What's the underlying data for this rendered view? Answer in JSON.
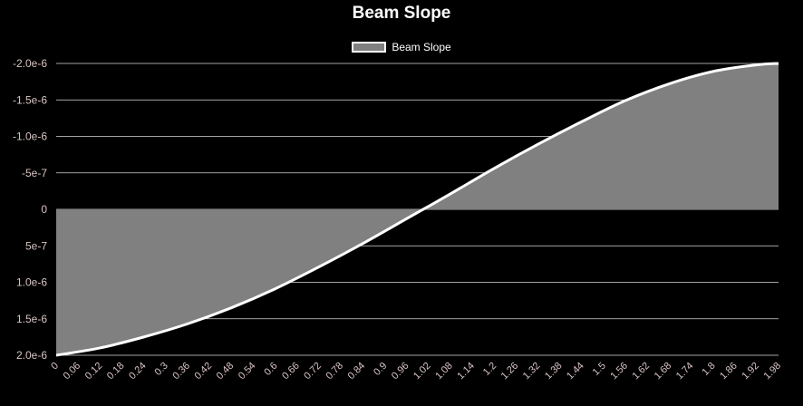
{
  "chart_data": {
    "type": "area",
    "title": "Beam Slope",
    "legend": [
      "Beam Slope"
    ],
    "legend_position": "top",
    "grid": true,
    "y_reversed": true,
    "ylim": [
      -2e-06,
      2e-06
    ],
    "y_ticks": [
      "-2.0e-6",
      "-1.5e-6",
      "-1.0e-6",
      "-5e-7",
      "0",
      "5e-7",
      "1.0e-6",
      "1.5e-6",
      "2.0e-6"
    ],
    "x_ticks": [
      "0",
      "0.06",
      "0.12",
      "0.18",
      "0.24",
      "0.3",
      "0.36",
      "0.42",
      "0.48",
      "0.54",
      "0.6",
      "0.66",
      "0.72",
      "0.78",
      "0.84",
      "0.9",
      "0.96",
      "1.02",
      "1.08",
      "1.14",
      "1.2",
      "1.26",
      "1.32",
      "1.38",
      "1.44",
      "1.5",
      "1.56",
      "1.62",
      "1.68",
      "1.74",
      "1.8",
      "1.86",
      "1.92",
      "1.98"
    ],
    "series": [
      {
        "name": "Beam Slope",
        "fill": "#808080",
        "line": "#ffffff",
        "x": [
          0,
          0.12,
          0.24,
          0.36,
          0.48,
          0.6,
          0.72,
          0.84,
          0.96,
          1.02,
          1.08,
          1.2,
          1.32,
          1.44,
          1.56,
          1.68,
          1.8,
          1.92,
          1.98
        ],
        "y": [
          2e-06,
          1.9e-06,
          1.75e-06,
          1.57e-06,
          1.35e-06,
          1.09e-06,
          7.9e-07,
          4.7e-07,
          1.3e-07,
          -4e-08,
          -2.1e-07,
          -5.6e-07,
          -8.9e-07,
          -1.2e-06,
          -1.49e-06,
          -1.72e-06,
          -1.89e-06,
          -1.98e-06,
          -2e-06
        ]
      }
    ]
  }
}
